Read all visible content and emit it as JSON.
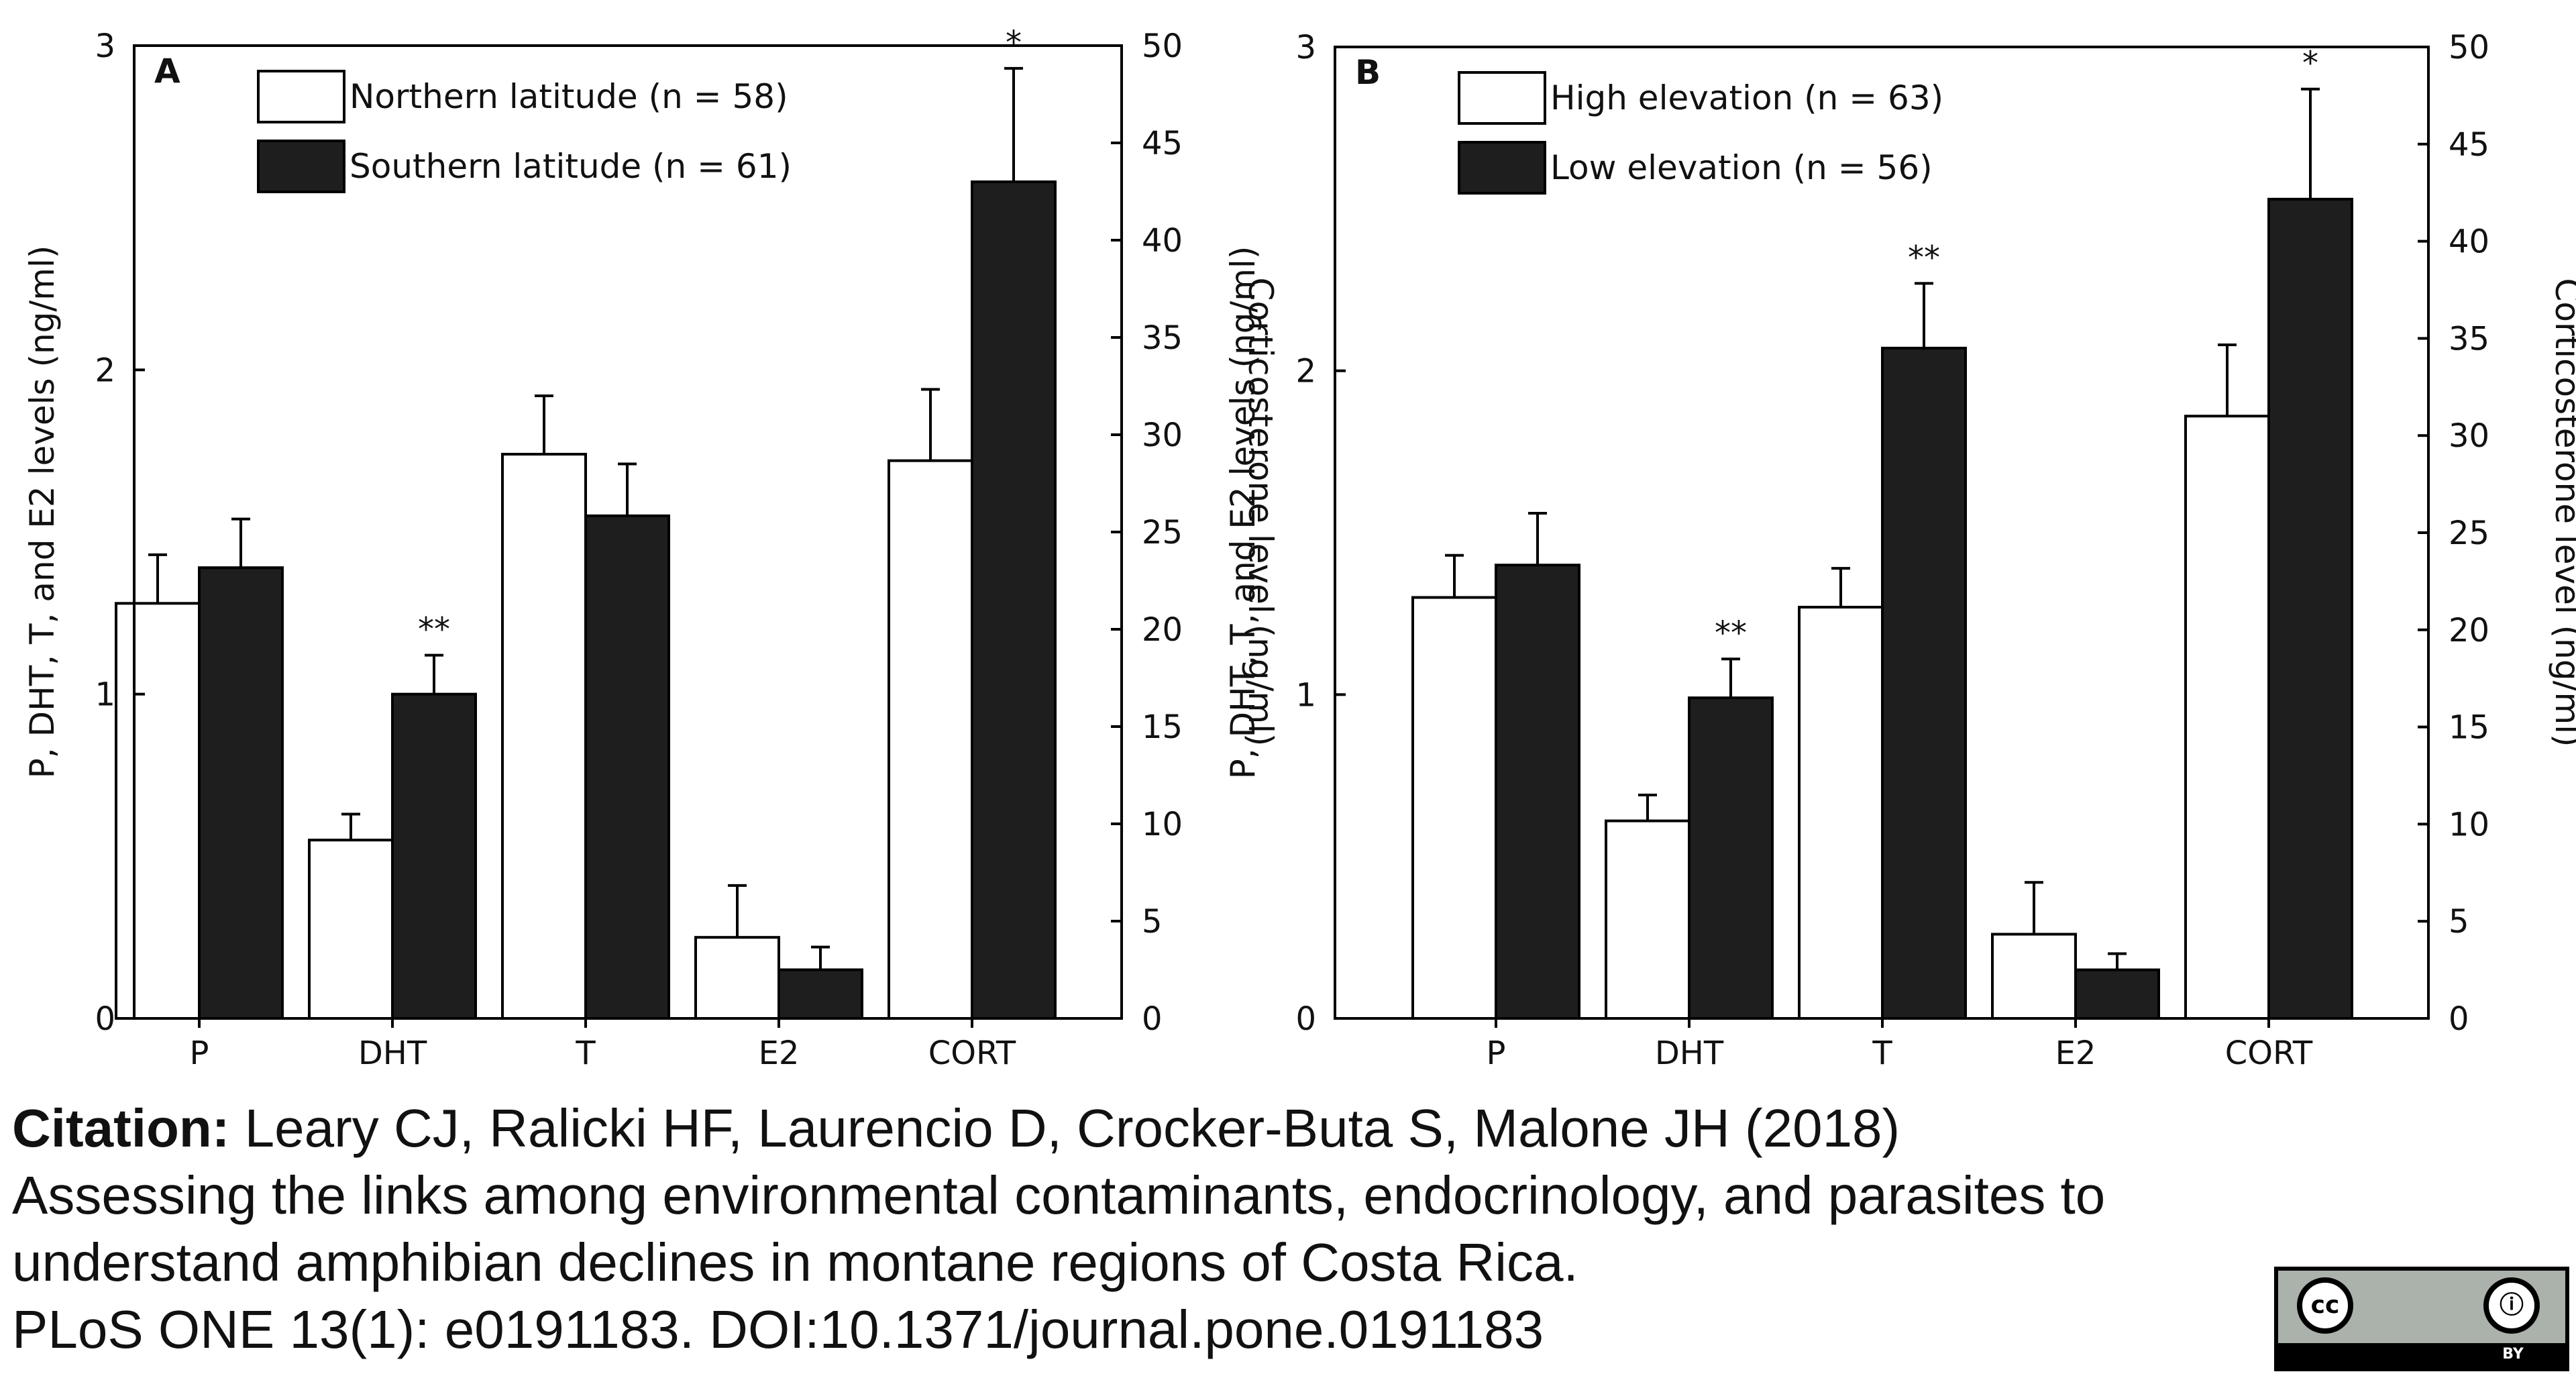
{
  "colors": {
    "white_bar": "#ffffff",
    "black_bar": "#1e1e1e",
    "stroke": "#000000"
  },
  "chart_data": [
    {
      "type": "bar",
      "panel": "A",
      "categories": [
        "P",
        "DHT",
        "T",
        "E2",
        "CORT"
      ],
      "series": [
        {
          "name": "Northern latitude (n = 58)",
          "fill": "white",
          "values": [
            1.28,
            0.55,
            1.74,
            0.25,
            1.72
          ],
          "errors": [
            0.15,
            0.08,
            0.18,
            0.16,
            0.22
          ]
        },
        {
          "name": "Southern latitude (n = 61)",
          "fill": "black",
          "values": [
            1.39,
            1.0,
            1.55,
            0.15,
            2.58
          ],
          "errors": [
            0.15,
            0.12,
            0.16,
            0.07,
            0.35
          ]
        }
      ],
      "significance": [
        {
          "category": "DHT",
          "series": 1,
          "mark": "**"
        },
        {
          "category": "CORT",
          "series": 1,
          "mark": "*"
        }
      ],
      "ylabel": "P, DHT, T, and E2 levels (ng/ml)",
      "y2label": "Corticosterone level (ng/ml)",
      "ylim": [
        0,
        3
      ],
      "yticks": [
        "0",
        "1",
        "2",
        "3"
      ],
      "y2lim": [
        0,
        50
      ],
      "y2ticks": [
        "0",
        "5",
        "10",
        "15",
        "20",
        "25",
        "30",
        "35",
        "40",
        "45",
        "50"
      ]
    },
    {
      "type": "bar",
      "panel": "B",
      "categories": [
        "P",
        "DHT",
        "T",
        "E2",
        "CORT"
      ],
      "series": [
        {
          "name": "High elevation (n = 63)",
          "fill": "white",
          "values": [
            1.3,
            0.61,
            1.27,
            0.26,
            1.86
          ],
          "errors": [
            0.13,
            0.08,
            0.12,
            0.16,
            0.22
          ]
        },
        {
          "name": "Low elevation (n = 56)",
          "fill": "black",
          "values": [
            1.4,
            0.99,
            2.07,
            0.15,
            2.53
          ],
          "errors": [
            0.16,
            0.12,
            0.2,
            0.05,
            0.34
          ]
        }
      ],
      "significance": [
        {
          "category": "DHT",
          "series": 1,
          "mark": "**"
        },
        {
          "category": "T",
          "series": 1,
          "mark": "**"
        },
        {
          "category": "CORT",
          "series": 1,
          "mark": "*"
        }
      ],
      "ylabel": "P, DHT, T, and E2 levels (ng/ml)",
      "y2label": "Corticosterone level (ng/ml)",
      "ylim": [
        0,
        3
      ],
      "yticks": [
        "0",
        "1",
        "2",
        "3"
      ],
      "y2lim": [
        0,
        50
      ],
      "y2ticks": [
        "0",
        "5",
        "10",
        "15",
        "20",
        "25",
        "30",
        "35",
        "40",
        "45",
        "50"
      ]
    }
  ],
  "citation": {
    "label": "Citation:",
    "authors": "Leary CJ, Ralicki HF, Laurencio D, Crocker-Buta S, Malone JH (2018)",
    "title_line1": "Assessing the links among environmental contaminants, endocrinology, and parasites to",
    "title_line2": "understand amphibian declines in montane regions of Costa Rica.",
    "journal": "PLoS ONE 13(1): e0191183. DOI:10.1371/journal.pone.0191183"
  },
  "license_badge": {
    "left_symbol": "cc",
    "right_symbol": "ⓘ",
    "label": "BY"
  }
}
